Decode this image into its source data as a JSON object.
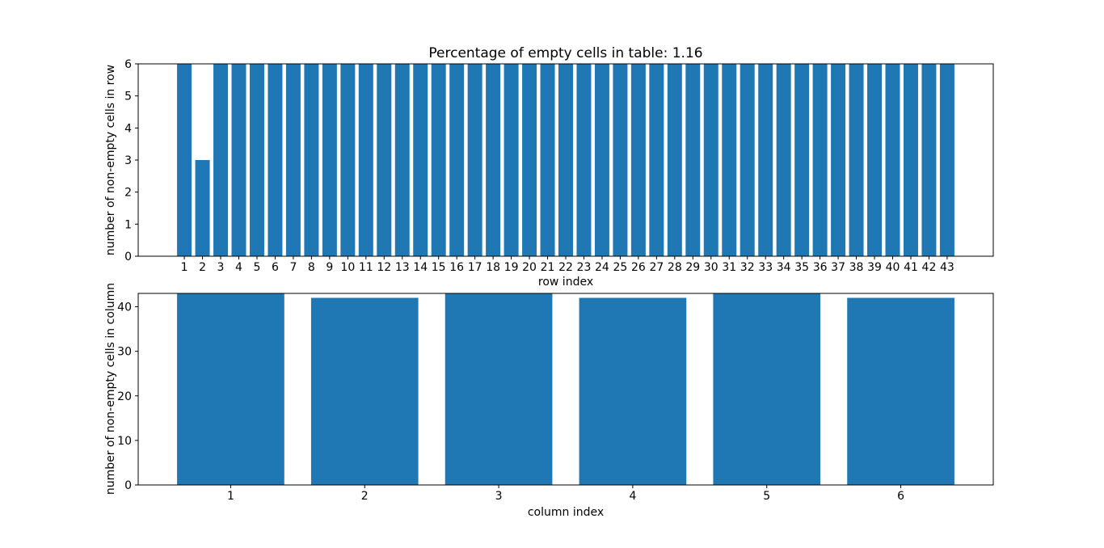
{
  "figure": {
    "background": "#ffffff",
    "bar_color": "#1f77b4",
    "axis_color": "#000000",
    "text_color": "#000000"
  },
  "chart_data": [
    {
      "type": "bar",
      "title": "Percentage of empty cells in table: 1.16",
      "xlabel": "row index",
      "ylabel": "number of non-empty cells in row",
      "categories": [
        "1",
        "2",
        "3",
        "4",
        "5",
        "6",
        "7",
        "8",
        "9",
        "10",
        "11",
        "12",
        "13",
        "14",
        "15",
        "16",
        "17",
        "18",
        "19",
        "20",
        "21",
        "22",
        "23",
        "24",
        "25",
        "26",
        "27",
        "28",
        "29",
        "30",
        "31",
        "32",
        "33",
        "34",
        "35",
        "36",
        "37",
        "38",
        "39",
        "40",
        "41",
        "42",
        "43"
      ],
      "values": [
        6,
        3,
        6,
        6,
        6,
        6,
        6,
        6,
        6,
        6,
        6,
        6,
        6,
        6,
        6,
        6,
        6,
        6,
        6,
        6,
        6,
        6,
        6,
        6,
        6,
        6,
        6,
        6,
        6,
        6,
        6,
        6,
        6,
        6,
        6,
        6,
        6,
        6,
        6,
        6,
        6,
        6,
        6
      ],
      "yticks": [
        0,
        1,
        2,
        3,
        4,
        5,
        6
      ],
      "ylim": [
        0,
        6
      ],
      "bar_width": 0.8,
      "grid": false,
      "legend": false
    },
    {
      "type": "bar",
      "title": "",
      "xlabel": "column index",
      "ylabel": "number of non-empty cells in column",
      "categories": [
        "1",
        "2",
        "3",
        "4",
        "5",
        "6"
      ],
      "values": [
        43,
        42,
        43,
        42,
        43,
        42
      ],
      "yticks": [
        0,
        10,
        20,
        30,
        40
      ],
      "ylim": [
        0,
        43
      ],
      "bar_width": 0.8,
      "grid": false,
      "legend": false
    }
  ]
}
